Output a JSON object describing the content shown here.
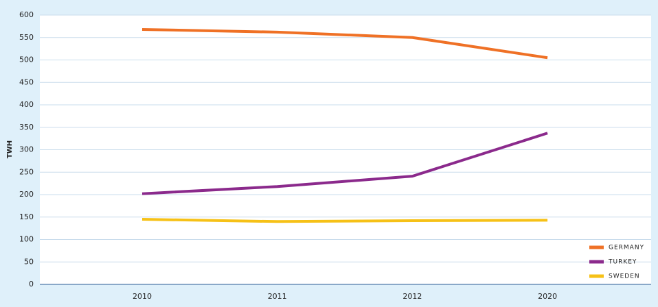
{
  "chart_data": {
    "type": "line",
    "y_label": "TWH",
    "categories": [
      "2010",
      "2011",
      "2012",
      "2020"
    ],
    "series": [
      {
        "name": "GERMANY",
        "color": "#ef7126",
        "values": [
          568,
          562,
          550,
          505
        ]
      },
      {
        "name": "TURKEY",
        "color": "#8b2a8c",
        "values": [
          202,
          218,
          241,
          337
        ]
      },
      {
        "name": "SWEDEN",
        "color": "#f6c117",
        "values": [
          145,
          140,
          142,
          143
        ]
      }
    ],
    "ylim": [
      0,
      600
    ],
    "yticks": [
      0,
      50,
      100,
      150,
      200,
      250,
      300,
      350,
      400,
      450,
      500,
      550,
      600
    ],
    "grid": true,
    "legend": "lower-right"
  }
}
